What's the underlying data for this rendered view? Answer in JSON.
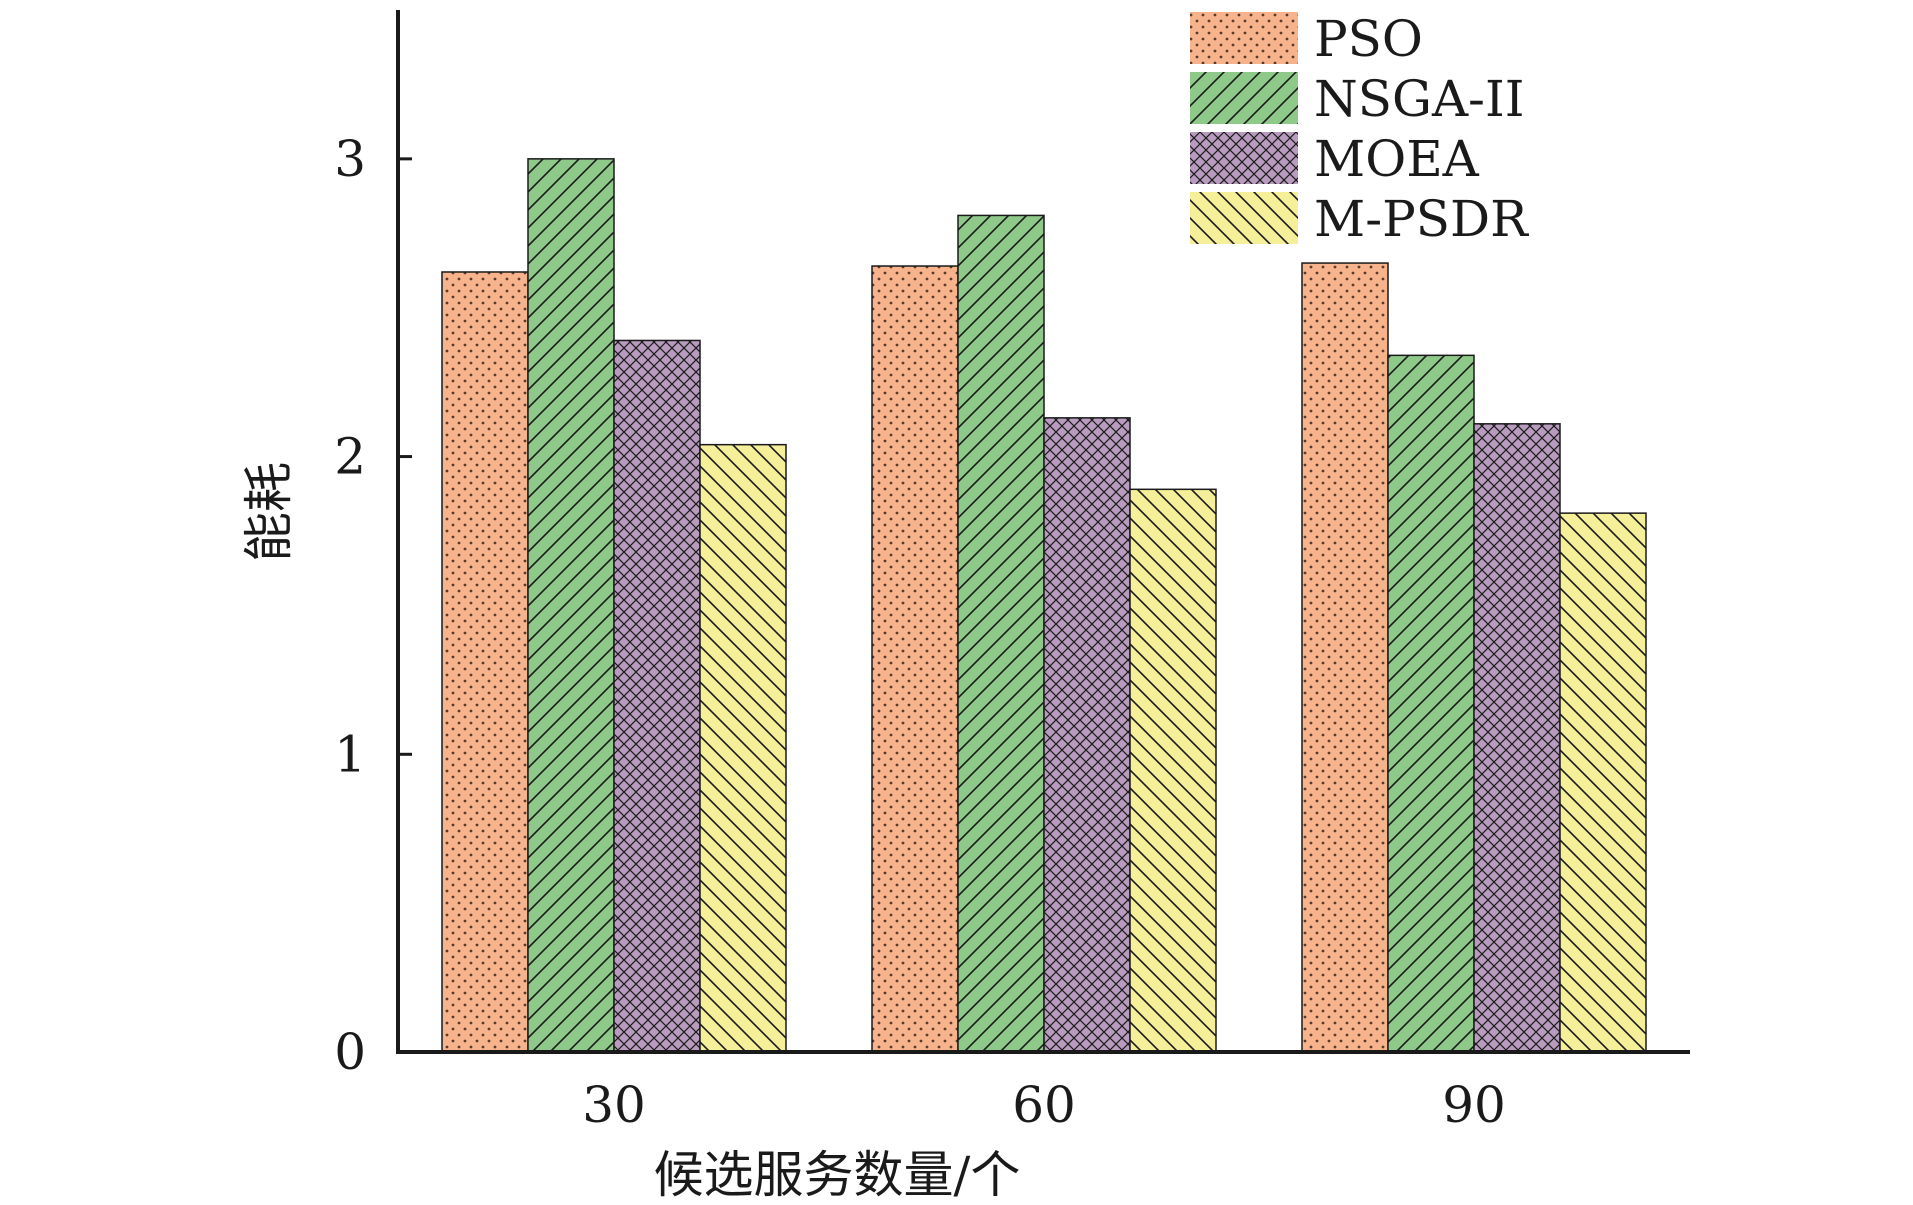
{
  "chart_data": {
    "type": "bar",
    "categories": [
      "30",
      "60",
      "90"
    ],
    "series": [
      {
        "name": "PSO",
        "values": [
          2.62,
          2.64,
          2.65
        ],
        "color": "#f7b38b",
        "pattern": "dots"
      },
      {
        "name": "NSGA-II",
        "values": [
          3.0,
          2.81,
          2.34
        ],
        "color": "#8fc98a",
        "pattern": "forward-diagonal"
      },
      {
        "name": "MOEA",
        "values": [
          2.39,
          2.13,
          2.11
        ],
        "color": "#b89bbf",
        "pattern": "crosshatch"
      },
      {
        "name": "M-PSDR",
        "values": [
          2.04,
          1.89,
          1.81
        ],
        "color": "#f5ef9a",
        "pattern": "back-diagonal"
      }
    ],
    "xlabel": "候选服务数量/个",
    "ylabel": "能耗",
    "ylim": [
      0,
      3.5
    ],
    "yticks": [
      0,
      1,
      2,
      3
    ],
    "grid": false,
    "legend": "top-right"
  }
}
